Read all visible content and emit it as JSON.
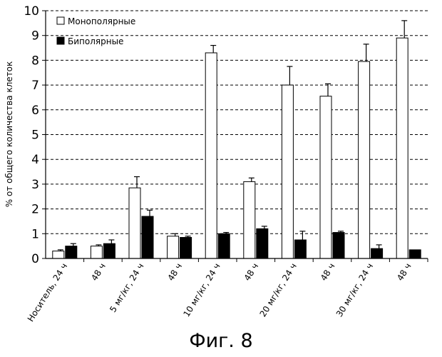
{
  "chart_data": {
    "type": "bar",
    "ylabel": "% от общего количества клеток",
    "ylim": [
      0,
      10
    ],
    "yticks": [
      0,
      1,
      2,
      3,
      4,
      5,
      6,
      7,
      8,
      9,
      10
    ],
    "grid": true,
    "legend_position": "top-left",
    "categories": [
      "Носитель, 24 ч",
      "48 ч",
      "5 мг/кг, 24 ч",
      "48 ч",
      "10 мг/кг, 24 ч",
      "48 ч",
      "20 мг/кг, 24 ч",
      "48 ч",
      "30 мг/кг, 24 ч",
      "48 ч"
    ],
    "series": [
      {
        "name": "Монополярные",
        "color": "#ffffff",
        "values": [
          0.3,
          0.5,
          2.85,
          0.9,
          8.3,
          3.1,
          7.0,
          6.55,
          7.95,
          8.9
        ],
        "errors": [
          0.05,
          0.05,
          0.45,
          0.1,
          0.3,
          0.15,
          0.75,
          0.5,
          0.7,
          0.7
        ]
      },
      {
        "name": "Биполярные",
        "color": "#000000",
        "values": [
          0.5,
          0.6,
          1.7,
          0.85,
          1.0,
          1.2,
          0.75,
          1.05,
          0.4,
          0.35
        ],
        "errors": [
          0.1,
          0.15,
          0.25,
          0.05,
          0.05,
          0.1,
          0.35,
          0.05,
          0.15,
          0.0
        ]
      }
    ]
  },
  "figure": {
    "caption": "Фиг. 8"
  }
}
